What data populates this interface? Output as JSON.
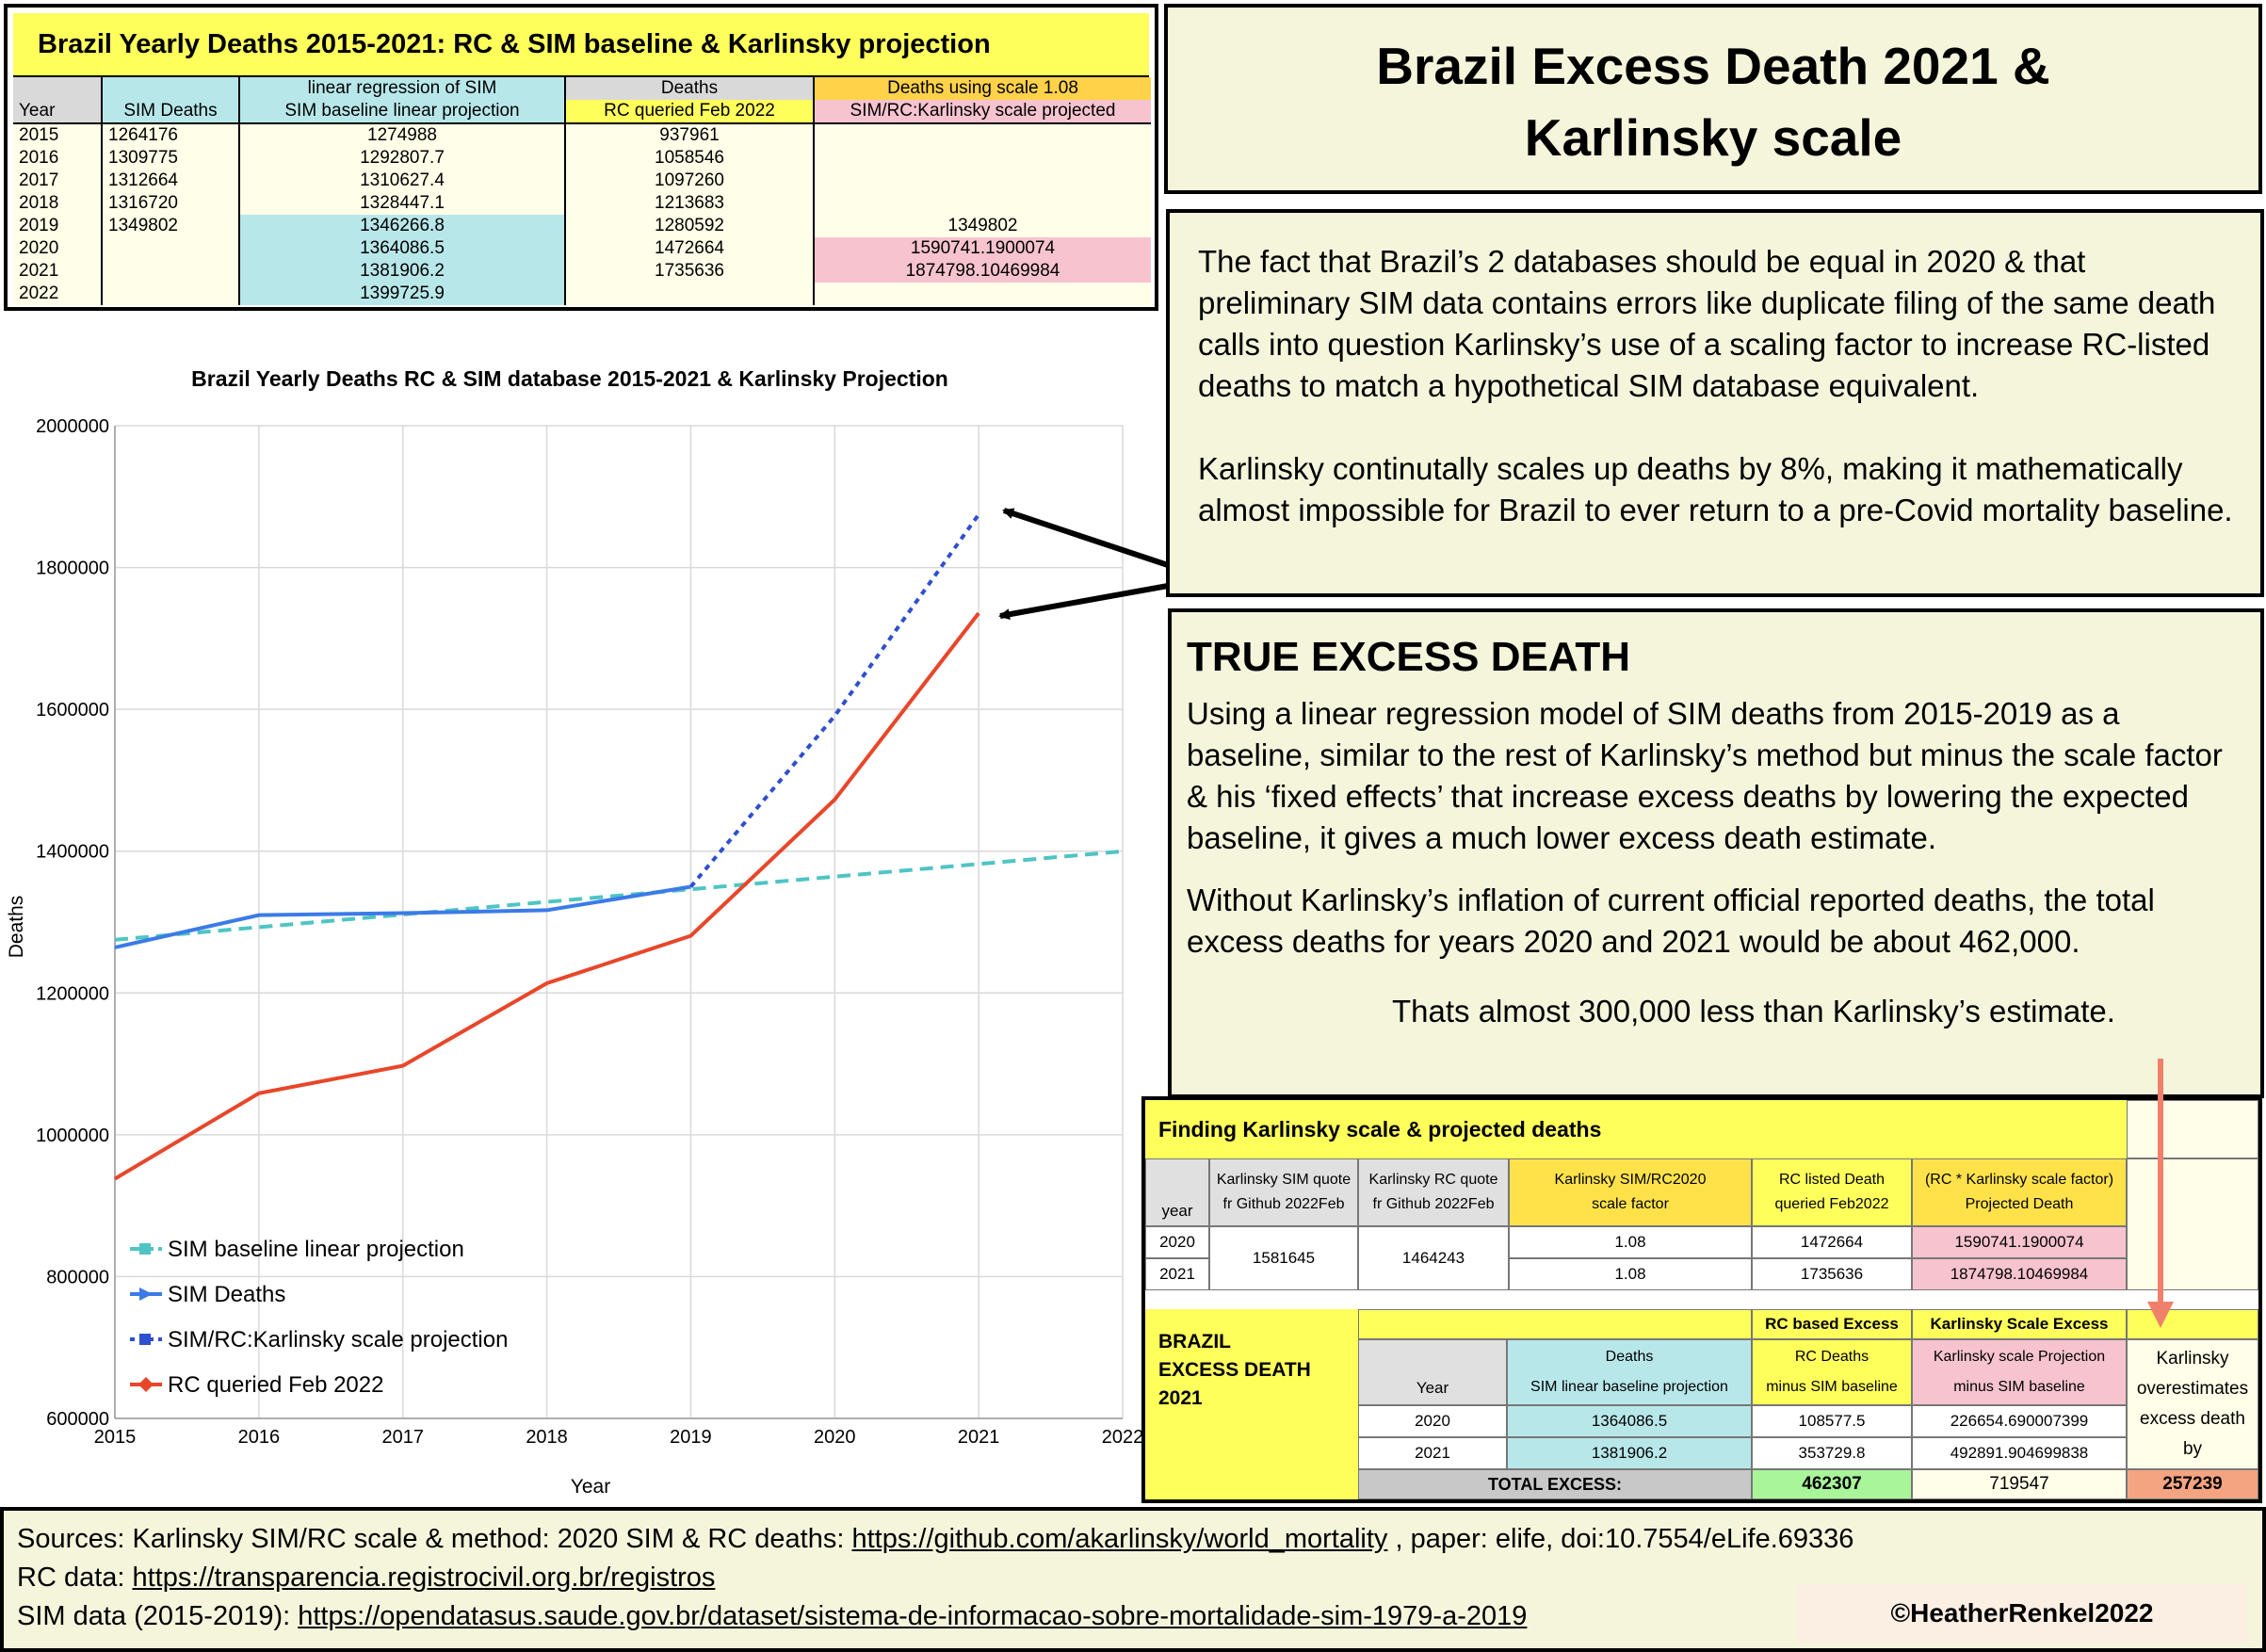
{
  "title": {
    "line1": "Brazil Excess Death 2021 &",
    "line2": "Karlinsky scale"
  },
  "top_table": {
    "title": "Brazil Yearly Deaths 2015-2021: RC & SIM baseline & Karlinsky projection",
    "headers_row1": [
      "",
      "",
      "linear regression of SIM",
      "Deaths",
      "Deaths using scale 1.08"
    ],
    "headers_row2": [
      "Year",
      "SIM Deaths",
      "SIM baseline linear projection",
      "RC queried Feb 2022",
      "SIM/RC:Karlinsky scale  projected"
    ],
    "rows": [
      [
        "2015",
        "1264176",
        "1274988",
        "937961",
        ""
      ],
      [
        "2016",
        "1309775",
        "1292807.7",
        "1058546",
        ""
      ],
      [
        "2017",
        "1312664",
        "1310627.4",
        "1097260",
        ""
      ],
      [
        "2018",
        "1316720",
        "1328447.1",
        "1213683",
        ""
      ],
      [
        "2019",
        "1349802",
        "1346266.8",
        "1280592",
        "1349802"
      ],
      [
        "2020",
        "",
        "1364086.5",
        "1472664",
        "1590741.1900074"
      ],
      [
        "2021",
        "",
        "1381906.2",
        "1735636",
        "1874798.10469984"
      ],
      [
        "2022",
        "",
        "1399725.9",
        "",
        ""
      ]
    ]
  },
  "text_box_1": {
    "p1": "The fact that Brazil’s 2 databases should be equal in 2020 & that preliminary SIM data contains errors like duplicate filing of the same death calls into question Karlinsky’s use of a scaling factor to increase RC-listed deaths to match a hypothetical SIM database equivalent.",
    "p2": "Karlinsky continutally scales up deaths by 8%, making it mathematically almost impossible for Brazil to ever return to a pre-Covid mortality baseline."
  },
  "text_box_2": {
    "heading": "TRUE EXCESS DEATH",
    "p1": "Using a linear regression model of SIM deaths from 2015-2019 as a baseline, similar to the rest of Karlinsky’s method but minus the scale factor & his ‘fixed effects’ that increase excess deaths by lowering the expected baseline, it gives a much lower excess death estimate.",
    "p2": "Without Karlinsky’s inflation of current official reported deaths, the total excess deaths for years 2020 and 2021 would be about 462,000.",
    "p3": "Thats almost 300,000 less than Karlinsky’s estimate."
  },
  "chart_data": {
    "type": "line",
    "title": "Brazil Yearly Deaths RC & SIM database 2015-2021 & Karlinsky Projection",
    "xlabel": "Year",
    "ylabel": "Deaths",
    "xlim": [
      2015,
      2022
    ],
    "ylim": [
      600000,
      2000000
    ],
    "x_ticks": [
      "2015",
      "2016",
      "2017",
      "2018",
      "2019",
      "2020",
      "2021",
      "2022"
    ],
    "y_ticks": [
      "600000",
      "800000",
      "1000000",
      "1200000",
      "1400000",
      "1600000",
      "1800000",
      "2000000"
    ],
    "grid": true,
    "legend_position": "bottom-left",
    "series": [
      {
        "name": "SIM baseline linear projection",
        "color": "#4fc4c4",
        "style": "dashed-square",
        "x": [
          2015,
          2016,
          2017,
          2018,
          2019,
          2020,
          2021,
          2022
        ],
        "y": [
          1274988,
          1292807.7,
          1310627.4,
          1328447.1,
          1346266.8,
          1364086.5,
          1381906.2,
          1399725.9
        ]
      },
      {
        "name": "SIM Deaths",
        "color": "#3b7be8",
        "style": "solid-triangle",
        "x": [
          2015,
          2016,
          2017,
          2018,
          2019
        ],
        "y": [
          1264176,
          1309775,
          1312664,
          1316720,
          1349802
        ]
      },
      {
        "name": "SIM/RC:Karlinsky scale  projection",
        "color": "#2e4fd0",
        "style": "dotted-square",
        "x": [
          2019,
          2020,
          2021
        ],
        "y": [
          1349802,
          1590741.19,
          1874798.1
        ]
      },
      {
        "name": "RC queried Feb 2022",
        "color": "#e8462a",
        "style": "solid-diamond",
        "x": [
          2015,
          2016,
          2017,
          2018,
          2019,
          2020,
          2021
        ],
        "y": [
          937961,
          1058546,
          1097260,
          1213683,
          1280592,
          1472664,
          1735636
        ]
      }
    ]
  },
  "scale_table": {
    "title": "Finding Karlinsky scale & projected deaths",
    "h_year": "year",
    "h_sim_1": "Karlinsky SIM quote",
    "h_sim_2": "fr Github 2022Feb",
    "h_rc_1": "Karlinsky RC quote",
    "h_rc_2": "fr Github 2022Feb",
    "h_scale_1": "Karlinsky SIM/RC2020",
    "h_scale_2": "scale factor",
    "h_rcl_1": "RC listed Death",
    "h_rcl_2": "queried Feb2022",
    "h_proj_1": "(RC * Karlinsky scale factor)",
    "h_proj_2": "Projected Death",
    "y2020": "2020",
    "y2021": "2021",
    "sim_quote": "1581645",
    "rc_quote": "1464243",
    "scale_2020": "1.08",
    "scale_2021": "1.08",
    "rcl_2020": "1472664",
    "rcl_2021": "1735636",
    "proj_2020": "1590741.1900074",
    "proj_2021": "1874798.10469984"
  },
  "excess_table": {
    "label_1": "BRAZIL",
    "label_2": "EXCESS  DEATH",
    "label_3": "2021",
    "h_rc_excess": "RC based Excess",
    "h_kar_excess": "Karlinsky Scale  Excess",
    "h_year": "Year",
    "h_deaths_1": "Deaths",
    "h_deaths_2": "SIM linear baseline projection",
    "h_rcd_1": "RC Deaths",
    "h_rcd_2": "minus SIM baseline",
    "h_kp_1": "Karlinsky scale Projection",
    "h_kp_2": "minus SIM baseline",
    "y2020": "2020",
    "y2021": "2021",
    "base_2020": "1364086.5",
    "base_2021": "1381906.2",
    "rcx_2020": "108577.5",
    "rcx_2021": "353729.8",
    "kx_2020": "226654.690007399",
    "kx_2021": "492891.904699838",
    "total_label": "TOTAL EXCESS:",
    "total_rc": "462307",
    "total_kar": "719547",
    "note_1": "Karlinsky",
    "note_2": "overestimates",
    "note_3": "excess death",
    "note_4": "by",
    "overestimate": "257239"
  },
  "sources": {
    "line1_a": "Sources: Karlinsky SIM/RC scale & method: 2020 SIM & RC deaths: ",
    "line1_link": "https://github.com/akarlinsky/world_mortality",
    "line1_b": " , paper: elife, doi:10.7554/eLife.69336",
    "line2_a": "RC data: ",
    "line2_link": "https://transparencia.registrocivil.org.br/registros",
    "line3_a": "SIM data (2015-2019): ",
    "line3_link": "https://opendatasus.saude.gov.br/dataset/sistema-de-informacao-sobre-mortalidade-sim-1979-a-2019",
    "copyright": "©HeatherRenkel2022"
  },
  "colors": {
    "yellow": "#ffff5c",
    "beige": "#f5f5dc",
    "light_blue": "#b8e7ea",
    "pink": "#f6c3cf",
    "green": "#a8f59a",
    "salmon": "#f4a480",
    "arrow_salmon": "#f07f6c"
  }
}
